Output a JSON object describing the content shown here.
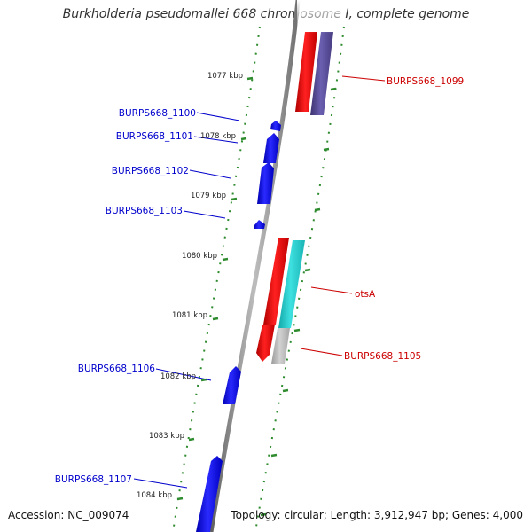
{
  "title": "Burkholderia pseudomallei 668 chromosome I, complete genome",
  "footer": {
    "accession": "Accession: NC_009074",
    "summary": "Topology: circular; Length: 3,912,947 bp; Genes: 4,000"
  },
  "colors": {
    "forward_gene": "#0000ff",
    "reverse_cds": "#ff0000",
    "reverse_gene": "#5b4f9a",
    "otsA_gene": "#22c9c9",
    "label_forward": "#0000cc",
    "label_reverse": "#cc0000",
    "ticks": "#2e8b2e",
    "backbone": "#808080"
  },
  "ticks": [
    {
      "label": "1077 kbp"
    },
    {
      "label": "1078 kbp"
    },
    {
      "label": "1079 kbp"
    },
    {
      "label": "1080 kbp"
    },
    {
      "label": "1081 kbp"
    },
    {
      "label": "1082 kbp"
    },
    {
      "label": "1083 kbp"
    },
    {
      "label": "1084 kbp"
    }
  ],
  "forward_genes": [
    {
      "label": "BURPS668_1100"
    },
    {
      "label": "BURPS668_1101"
    },
    {
      "label": "BURPS668_1102"
    },
    {
      "label": "BURPS668_1103"
    },
    {
      "label": "BURPS668_1106"
    },
    {
      "label": "BURPS668_1107"
    }
  ],
  "reverse_genes": [
    {
      "label": "BURPS668_1099"
    },
    {
      "label": "otsA"
    },
    {
      "label": "BURPS668_1105"
    }
  ]
}
